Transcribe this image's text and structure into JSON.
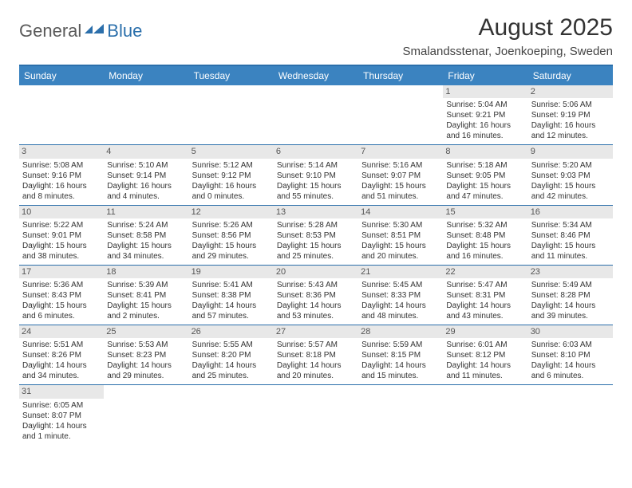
{
  "logo": {
    "part1": "General",
    "part2": "Blue"
  },
  "title": "August 2025",
  "location": "Smalandsstenar, Joenkoeping, Sweden",
  "weekdays": [
    "Sunday",
    "Monday",
    "Tuesday",
    "Wednesday",
    "Thursday",
    "Friday",
    "Saturday"
  ],
  "colors": {
    "header_bg": "#3b83c0",
    "border": "#2b6fab",
    "daynum_bg": "#e8e8e8"
  },
  "weeks": [
    [
      {
        "n": "",
        "sr": "",
        "ss": "",
        "dl1": "",
        "dl2": ""
      },
      {
        "n": "",
        "sr": "",
        "ss": "",
        "dl1": "",
        "dl2": ""
      },
      {
        "n": "",
        "sr": "",
        "ss": "",
        "dl1": "",
        "dl2": ""
      },
      {
        "n": "",
        "sr": "",
        "ss": "",
        "dl1": "",
        "dl2": ""
      },
      {
        "n": "",
        "sr": "",
        "ss": "",
        "dl1": "",
        "dl2": ""
      },
      {
        "n": "1",
        "sr": "Sunrise: 5:04 AM",
        "ss": "Sunset: 9:21 PM",
        "dl1": "Daylight: 16 hours",
        "dl2": "and 16 minutes."
      },
      {
        "n": "2",
        "sr": "Sunrise: 5:06 AM",
        "ss": "Sunset: 9:19 PM",
        "dl1": "Daylight: 16 hours",
        "dl2": "and 12 minutes."
      }
    ],
    [
      {
        "n": "3",
        "sr": "Sunrise: 5:08 AM",
        "ss": "Sunset: 9:16 PM",
        "dl1": "Daylight: 16 hours",
        "dl2": "and 8 minutes."
      },
      {
        "n": "4",
        "sr": "Sunrise: 5:10 AM",
        "ss": "Sunset: 9:14 PM",
        "dl1": "Daylight: 16 hours",
        "dl2": "and 4 minutes."
      },
      {
        "n": "5",
        "sr": "Sunrise: 5:12 AM",
        "ss": "Sunset: 9:12 PM",
        "dl1": "Daylight: 16 hours",
        "dl2": "and 0 minutes."
      },
      {
        "n": "6",
        "sr": "Sunrise: 5:14 AM",
        "ss": "Sunset: 9:10 PM",
        "dl1": "Daylight: 15 hours",
        "dl2": "and 55 minutes."
      },
      {
        "n": "7",
        "sr": "Sunrise: 5:16 AM",
        "ss": "Sunset: 9:07 PM",
        "dl1": "Daylight: 15 hours",
        "dl2": "and 51 minutes."
      },
      {
        "n": "8",
        "sr": "Sunrise: 5:18 AM",
        "ss": "Sunset: 9:05 PM",
        "dl1": "Daylight: 15 hours",
        "dl2": "and 47 minutes."
      },
      {
        "n": "9",
        "sr": "Sunrise: 5:20 AM",
        "ss": "Sunset: 9:03 PM",
        "dl1": "Daylight: 15 hours",
        "dl2": "and 42 minutes."
      }
    ],
    [
      {
        "n": "10",
        "sr": "Sunrise: 5:22 AM",
        "ss": "Sunset: 9:01 PM",
        "dl1": "Daylight: 15 hours",
        "dl2": "and 38 minutes."
      },
      {
        "n": "11",
        "sr": "Sunrise: 5:24 AM",
        "ss": "Sunset: 8:58 PM",
        "dl1": "Daylight: 15 hours",
        "dl2": "and 34 minutes."
      },
      {
        "n": "12",
        "sr": "Sunrise: 5:26 AM",
        "ss": "Sunset: 8:56 PM",
        "dl1": "Daylight: 15 hours",
        "dl2": "and 29 minutes."
      },
      {
        "n": "13",
        "sr": "Sunrise: 5:28 AM",
        "ss": "Sunset: 8:53 PM",
        "dl1": "Daylight: 15 hours",
        "dl2": "and 25 minutes."
      },
      {
        "n": "14",
        "sr": "Sunrise: 5:30 AM",
        "ss": "Sunset: 8:51 PM",
        "dl1": "Daylight: 15 hours",
        "dl2": "and 20 minutes."
      },
      {
        "n": "15",
        "sr": "Sunrise: 5:32 AM",
        "ss": "Sunset: 8:48 PM",
        "dl1": "Daylight: 15 hours",
        "dl2": "and 16 minutes."
      },
      {
        "n": "16",
        "sr": "Sunrise: 5:34 AM",
        "ss": "Sunset: 8:46 PM",
        "dl1": "Daylight: 15 hours",
        "dl2": "and 11 minutes."
      }
    ],
    [
      {
        "n": "17",
        "sr": "Sunrise: 5:36 AM",
        "ss": "Sunset: 8:43 PM",
        "dl1": "Daylight: 15 hours",
        "dl2": "and 6 minutes."
      },
      {
        "n": "18",
        "sr": "Sunrise: 5:39 AM",
        "ss": "Sunset: 8:41 PM",
        "dl1": "Daylight: 15 hours",
        "dl2": "and 2 minutes."
      },
      {
        "n": "19",
        "sr": "Sunrise: 5:41 AM",
        "ss": "Sunset: 8:38 PM",
        "dl1": "Daylight: 14 hours",
        "dl2": "and 57 minutes."
      },
      {
        "n": "20",
        "sr": "Sunrise: 5:43 AM",
        "ss": "Sunset: 8:36 PM",
        "dl1": "Daylight: 14 hours",
        "dl2": "and 53 minutes."
      },
      {
        "n": "21",
        "sr": "Sunrise: 5:45 AM",
        "ss": "Sunset: 8:33 PM",
        "dl1": "Daylight: 14 hours",
        "dl2": "and 48 minutes."
      },
      {
        "n": "22",
        "sr": "Sunrise: 5:47 AM",
        "ss": "Sunset: 8:31 PM",
        "dl1": "Daylight: 14 hours",
        "dl2": "and 43 minutes."
      },
      {
        "n": "23",
        "sr": "Sunrise: 5:49 AM",
        "ss": "Sunset: 8:28 PM",
        "dl1": "Daylight: 14 hours",
        "dl2": "and 39 minutes."
      }
    ],
    [
      {
        "n": "24",
        "sr": "Sunrise: 5:51 AM",
        "ss": "Sunset: 8:26 PM",
        "dl1": "Daylight: 14 hours",
        "dl2": "and 34 minutes."
      },
      {
        "n": "25",
        "sr": "Sunrise: 5:53 AM",
        "ss": "Sunset: 8:23 PM",
        "dl1": "Daylight: 14 hours",
        "dl2": "and 29 minutes."
      },
      {
        "n": "26",
        "sr": "Sunrise: 5:55 AM",
        "ss": "Sunset: 8:20 PM",
        "dl1": "Daylight: 14 hours",
        "dl2": "and 25 minutes."
      },
      {
        "n": "27",
        "sr": "Sunrise: 5:57 AM",
        "ss": "Sunset: 8:18 PM",
        "dl1": "Daylight: 14 hours",
        "dl2": "and 20 minutes."
      },
      {
        "n": "28",
        "sr": "Sunrise: 5:59 AM",
        "ss": "Sunset: 8:15 PM",
        "dl1": "Daylight: 14 hours",
        "dl2": "and 15 minutes."
      },
      {
        "n": "29",
        "sr": "Sunrise: 6:01 AM",
        "ss": "Sunset: 8:12 PM",
        "dl1": "Daylight: 14 hours",
        "dl2": "and 11 minutes."
      },
      {
        "n": "30",
        "sr": "Sunrise: 6:03 AM",
        "ss": "Sunset: 8:10 PM",
        "dl1": "Daylight: 14 hours",
        "dl2": "and 6 minutes."
      }
    ],
    [
      {
        "n": "31",
        "sr": "Sunrise: 6:05 AM",
        "ss": "Sunset: 8:07 PM",
        "dl1": "Daylight: 14 hours",
        "dl2": "and 1 minute."
      },
      {
        "n": "",
        "sr": "",
        "ss": "",
        "dl1": "",
        "dl2": ""
      },
      {
        "n": "",
        "sr": "",
        "ss": "",
        "dl1": "",
        "dl2": ""
      },
      {
        "n": "",
        "sr": "",
        "ss": "",
        "dl1": "",
        "dl2": ""
      },
      {
        "n": "",
        "sr": "",
        "ss": "",
        "dl1": "",
        "dl2": ""
      },
      {
        "n": "",
        "sr": "",
        "ss": "",
        "dl1": "",
        "dl2": ""
      },
      {
        "n": "",
        "sr": "",
        "ss": "",
        "dl1": "",
        "dl2": ""
      }
    ]
  ]
}
